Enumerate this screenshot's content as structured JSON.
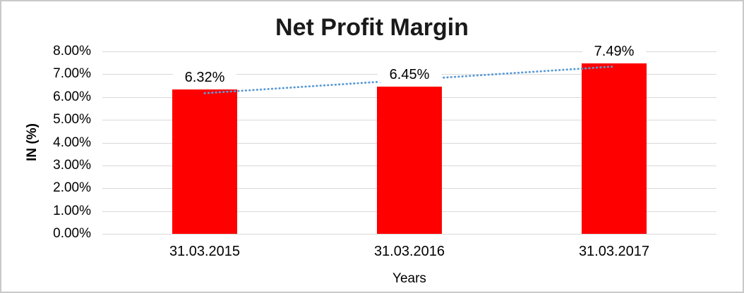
{
  "chart_data": {
    "type": "bar",
    "title": "Net Profit Margin",
    "xlabel": "Years",
    "ylabel": "IN (%)",
    "categories": [
      "31.03.2015",
      "31.03.2016",
      "31.03.2017"
    ],
    "values": [
      6.32,
      6.45,
      7.49
    ],
    "data_labels": [
      "6.32%",
      "6.45%",
      "7.49%"
    ],
    "ylim": [
      0,
      8
    ],
    "ytick_labels": [
      "0.00%",
      "1.00%",
      "2.00%",
      "3.00%",
      "4.00%",
      "5.00%",
      "6.00%",
      "7.00%",
      "8.00%"
    ],
    "grid": true,
    "legend_position": "none",
    "bar_color": "#ff0000",
    "gridline_color": "#d9d9d9",
    "trendline": {
      "type": "linear",
      "style": "dotted",
      "color": "#5b9bd5"
    }
  }
}
